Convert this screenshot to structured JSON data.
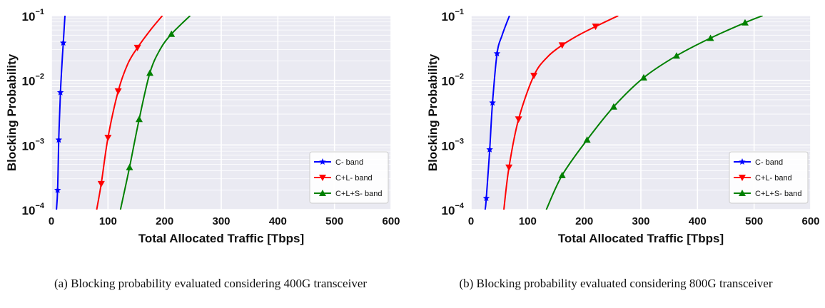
{
  "chart_data": [
    {
      "type": "line",
      "panel": "a",
      "xlabel": "Total Allocated Traffic [Tbps]",
      "ylabel": "Blocking Probability",
      "xlim": [
        0,
        600
      ],
      "ylim": [
        0.0001,
        0.1
      ],
      "yscale": "log",
      "xticks": [
        "0",
        "100",
        "200",
        "300",
        "400",
        "500",
        "600"
      ],
      "yticks": [
        {
          "base": "10",
          "exp": "−1"
        },
        {
          "base": "10",
          "exp": "−2"
        },
        {
          "base": "10",
          "exp": "−3"
        },
        {
          "base": "10",
          "exp": "−4"
        }
      ],
      "grid": true,
      "legend_position": "lower-right",
      "series": [
        {
          "name": "C- band",
          "color": "#0000ff",
          "marker": "star",
          "curve": [
            [
              9,
              0.0001
            ],
            [
              11,
              0.0002
            ],
            [
              13,
              0.0012
            ],
            [
              16,
              0.0065
            ],
            [
              19,
              0.02
            ],
            [
              21,
              0.038
            ],
            [
              24,
              0.1
            ]
          ],
          "markers": [
            [
              11,
              0.0002
            ],
            [
              13,
              0.0012
            ],
            [
              16,
              0.0065
            ],
            [
              21,
              0.038
            ]
          ]
        },
        {
          "name": "C+L- band",
          "color": "#ff0000",
          "marker": "triangle-down",
          "curve": [
            [
              80,
              0.0001
            ],
            [
              88,
              0.00025
            ],
            [
              100,
              0.0013
            ],
            [
              118,
              0.0068
            ],
            [
              135,
              0.018
            ],
            [
              152,
              0.032
            ],
            [
              175,
              0.06
            ],
            [
              196,
              0.1
            ]
          ],
          "markers": [
            [
              88,
              0.00025
            ],
            [
              100,
              0.0013
            ],
            [
              118,
              0.0068
            ],
            [
              152,
              0.032
            ]
          ]
        },
        {
          "name": "C+L+S- band",
          "color": "#008000",
          "marker": "triangle-up",
          "curve": [
            [
              122,
              0.0001
            ],
            [
              138,
              0.00045
            ],
            [
              155,
              0.0025
            ],
            [
              174,
              0.013
            ],
            [
              192,
              0.03
            ],
            [
              212,
              0.052
            ],
            [
              245,
              0.1
            ]
          ],
          "markers": [
            [
              138,
              0.00045
            ],
            [
              155,
              0.0025
            ],
            [
              174,
              0.013
            ],
            [
              212,
              0.052
            ]
          ]
        }
      ]
    },
    {
      "type": "line",
      "panel": "b",
      "xlabel": "Total Allocated Traffic [Tbps]",
      "ylabel": "Blocking Probability",
      "xlim": [
        0,
        600
      ],
      "ylim": [
        0.0001,
        0.1
      ],
      "yscale": "log",
      "xticks": [
        "0",
        "100",
        "200",
        "300",
        "400",
        "500",
        "600"
      ],
      "yticks": [
        {
          "base": "10",
          "exp": "−1"
        },
        {
          "base": "10",
          "exp": "−2"
        },
        {
          "base": "10",
          "exp": "−3"
        },
        {
          "base": "10",
          "exp": "−4"
        }
      ],
      "grid": true,
      "legend_position": "lower-right",
      "series": [
        {
          "name": "C- band",
          "color": "#0000ff",
          "marker": "star",
          "curve": [
            [
              25,
              0.0001
            ],
            [
              27,
              0.00015
            ],
            [
              33,
              0.00085
            ],
            [
              38,
              0.0045
            ],
            [
              46,
              0.026
            ],
            [
              55,
              0.05
            ],
            [
              68,
              0.1
            ]
          ],
          "markers": [
            [
              27,
              0.00015
            ],
            [
              33,
              0.00085
            ],
            [
              38,
              0.0045
            ],
            [
              46,
              0.026
            ]
          ]
        },
        {
          "name": "C+L- band",
          "color": "#ff0000",
          "marker": "triangle-down",
          "curve": [
            [
              58,
              0.0001
            ],
            [
              67,
              0.00045
            ],
            [
              84,
              0.0025
            ],
            [
              111,
              0.0118
            ],
            [
              135,
              0.023
            ],
            [
              161,
              0.035
            ],
            [
              190,
              0.05
            ],
            [
              220,
              0.068
            ],
            [
              260,
              0.1
            ]
          ],
          "markers": [
            [
              67,
              0.00045
            ],
            [
              84,
              0.0025
            ],
            [
              111,
              0.0118
            ],
            [
              161,
              0.035
            ],
            [
              220,
              0.068
            ]
          ]
        },
        {
          "name": "C+L+S- band",
          "color": "#008000",
          "marker": "triangle-up",
          "curve": [
            [
              133,
              0.0001
            ],
            [
              161,
              0.00034
            ],
            [
              205,
              0.0012
            ],
            [
              252,
              0.0039
            ],
            [
              305,
              0.011
            ],
            [
              363,
              0.024
            ],
            [
              423,
              0.045
            ],
            [
              484,
              0.078
            ],
            [
              515,
              0.1
            ]
          ],
          "markers": [
            [
              161,
              0.00034
            ],
            [
              205,
              0.0012
            ],
            [
              252,
              0.0039
            ],
            [
              305,
              0.011
            ],
            [
              363,
              0.024
            ],
            [
              423,
              0.045
            ],
            [
              484,
              0.078
            ]
          ]
        }
      ]
    }
  ],
  "captions": {
    "a": "(a) Blocking probability evaluated considering 400G transceiver",
    "b": "(b) Blocking probability evaluated considering 800G transceiver"
  }
}
